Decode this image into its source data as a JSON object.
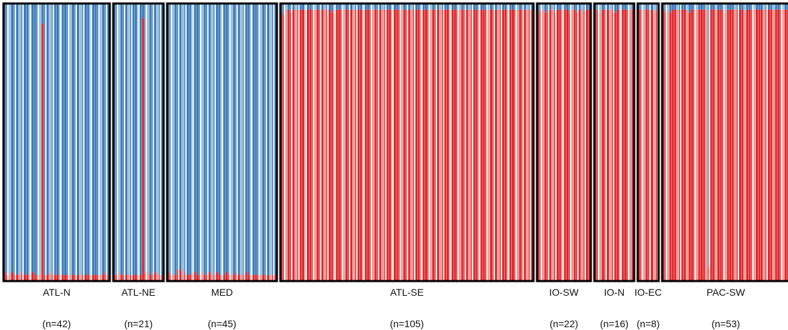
{
  "chart_data": {
    "type": "bar",
    "stacked": true,
    "normalized": true,
    "ylim": [
      0,
      1
    ],
    "grid": false,
    "legend": "none",
    "colors": {
      "cluster_1": "#3a7bb8",
      "cluster_1_light": "#9cc0de",
      "cluster_2": "#e0282a",
      "cluster_2_light": "#f29a9a",
      "gap": "#ffffff",
      "frame": "#000000"
    },
    "components": [
      "cluster_1",
      "cluster_2"
    ],
    "populations": [
      {
        "label": "ATL-N",
        "n_label": "(n=42)",
        "n": 42,
        "cluster_2_proportions": [
          0.03,
          0.02,
          0.02,
          0.03,
          0.02,
          0.02,
          0.02,
          0.03,
          0.02,
          0.02,
          0.03,
          0.03,
          0.02,
          0.02,
          0.02,
          0.93,
          0.02,
          0.02,
          0.03,
          0.02,
          0.02,
          0.02,
          0.04,
          0.02,
          0.02,
          0.02,
          0.02,
          0.02,
          0.02,
          0.02,
          0.02,
          0.02,
          0.02,
          0.02,
          0.02,
          0.02,
          0.02,
          0.02,
          0.02,
          0.02,
          0.03,
          0.02
        ]
      },
      {
        "label": "ATL-NE",
        "n_label": "(n=21)",
        "n": 21,
        "cluster_2_proportions": [
          0.02,
          0.02,
          0.03,
          0.02,
          0.02,
          0.02,
          0.02,
          0.02,
          0.02,
          0.02,
          0.02,
          0.02,
          0.95,
          0.03,
          0.03,
          0.02,
          0.02,
          0.03,
          0.02,
          0.02,
          0.02
        ]
      },
      {
        "label": "MED",
        "n_label": "(n=45)",
        "n": 45,
        "cluster_2_proportions": [
          0.03,
          0.02,
          0.02,
          0.02,
          0.04,
          0.04,
          0.02,
          0.03,
          0.02,
          0.02,
          0.03,
          0.03,
          0.02,
          0.02,
          0.03,
          0.02,
          0.02,
          0.03,
          0.02,
          0.02,
          0.03,
          0.02,
          0.02,
          0.02,
          0.03,
          0.02,
          0.02,
          0.02,
          0.03,
          0.02,
          0.02,
          0.02,
          0.03,
          0.02,
          0.02,
          0.02,
          0.02,
          0.02,
          0.02,
          0.02,
          0.02,
          0.02,
          0.02,
          0.02,
          0.02
        ]
      },
      {
        "label": "ATL-SE",
        "n_label": "(n=105)",
        "n": 105,
        "cluster_2_proportions": [
          0.97,
          0.96,
          0.98,
          0.98,
          0.97,
          0.98,
          0.98,
          0.98,
          0.98,
          0.98,
          0.98,
          0.98,
          0.98,
          0.98,
          0.98,
          0.98,
          0.98,
          0.98,
          0.98,
          0.98,
          0.98,
          0.97,
          0.98,
          0.98,
          0.98,
          0.98,
          0.98,
          0.98,
          0.98,
          0.98,
          0.98,
          0.98,
          0.98,
          0.98,
          0.98,
          0.98,
          0.98,
          0.98,
          0.98,
          0.98,
          0.98,
          0.98,
          0.98,
          0.98,
          0.98,
          0.98,
          0.98,
          0.98,
          0.98,
          0.98,
          0.98,
          0.98,
          0.98,
          0.98,
          0.98,
          0.98,
          0.98,
          0.98,
          0.98,
          0.98,
          0.98,
          0.98,
          0.98,
          0.98,
          0.98,
          0.98,
          0.98,
          0.98,
          0.98,
          0.98,
          0.98,
          0.98,
          0.98,
          0.98,
          0.98,
          0.98,
          0.98,
          0.98,
          0.98,
          0.98,
          0.98,
          0.98,
          0.98,
          0.98,
          0.98,
          0.98,
          0.98,
          0.98,
          0.98,
          0.98,
          0.98,
          0.98,
          0.98,
          0.98,
          0.98,
          0.98,
          0.98,
          0.98,
          0.98,
          0.98,
          0.98,
          0.98,
          0.98,
          0.98,
          0.98
        ]
      },
      {
        "label": "IO-SW",
        "n_label": "(n=22)",
        "n": 22,
        "cluster_2_proportions": [
          0.97,
          0.98,
          0.98,
          0.97,
          0.98,
          0.98,
          0.98,
          0.97,
          0.98,
          0.98,
          0.98,
          0.98,
          0.98,
          0.97,
          0.98,
          0.98,
          0.97,
          0.98,
          0.97,
          0.98,
          0.98,
          0.98
        ]
      },
      {
        "label": "IO-N",
        "n_label": "(n=16)",
        "n": 16,
        "cluster_2_proportions": [
          0.98,
          0.98,
          0.97,
          0.98,
          0.98,
          0.98,
          0.98,
          0.98,
          0.97,
          0.98,
          0.98,
          0.98,
          0.98,
          0.98,
          0.98,
          0.98
        ]
      },
      {
        "label": "IO-EC",
        "n_label": "(n=8)",
        "n": 8,
        "cluster_2_proportions": [
          0.98,
          0.98,
          0.98,
          0.98,
          0.98,
          0.98,
          0.97,
          0.98
        ]
      },
      {
        "label": "PAC-SW",
        "n_label": "(n=53)",
        "n": 53,
        "cluster_2_proportions": [
          0.98,
          0.97,
          0.98,
          0.97,
          0.98,
          0.98,
          0.98,
          0.98,
          0.98,
          0.98,
          0.98,
          0.97,
          0.98,
          0.98,
          0.98,
          0.98,
          0.98,
          0.98,
          0.98,
          0.05,
          0.98,
          0.98,
          0.98,
          0.98,
          0.98,
          0.98,
          0.97,
          0.98,
          0.98,
          0.98,
          0.98,
          0.98,
          0.98,
          0.98,
          0.97,
          0.98,
          0.98,
          0.98,
          0.98,
          0.98,
          0.98,
          0.98,
          0.98,
          0.98,
          0.98,
          0.98,
          0.98,
          0.98,
          0.98,
          0.98,
          0.98,
          0.98,
          0.98
        ]
      }
    ]
  }
}
